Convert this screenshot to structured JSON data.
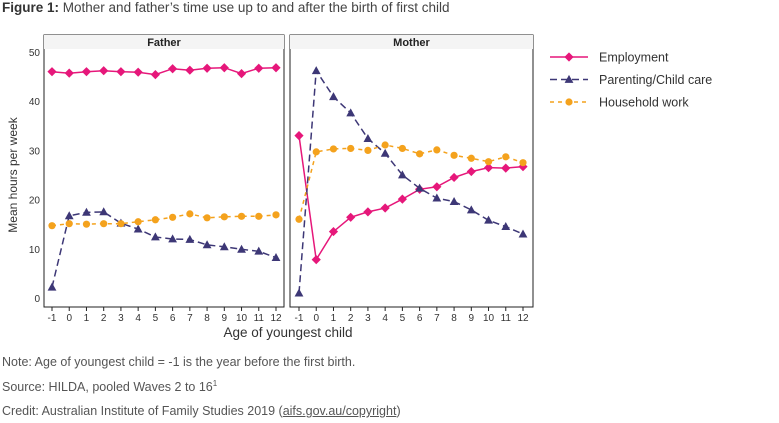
{
  "figure": {
    "label": "Figure 1:",
    "title": "Mother and father’s time use up to and after the birth of first child"
  },
  "notes": {
    "note": "Note: Age of youngest child = -1 is the year before the first birth.",
    "source_prefix": "Source: HILDA, pooled Waves 2 to 16",
    "source_sup": "1",
    "credit_prefix": "Credit: Australian Institute of Family Studies 2019 (",
    "credit_link": "aifs.gov.au/copyright",
    "credit_suffix": ")"
  },
  "chart_data": {
    "type": "line",
    "ylabel": "Mean hours per week",
    "xlabel": "Age of youngest child",
    "ylim": [
      0,
      50
    ],
    "yticks": [
      0,
      10,
      20,
      30,
      40,
      50
    ],
    "x": [
      -1,
      0,
      1,
      2,
      3,
      4,
      5,
      6,
      7,
      8,
      9,
      10,
      11,
      12
    ],
    "xtick_labels": [
      "-1",
      "0",
      "1",
      "2",
      "3",
      "4",
      "5",
      "6",
      "7",
      "8",
      "9",
      "10",
      "11",
      "12"
    ],
    "legend_position": "right",
    "panels": [
      {
        "title": "Father",
        "series": [
          {
            "name": "Employment",
            "color": "#e6177a",
            "marker": "diamond",
            "dash": "solid",
            "values": [
              46.0,
              45.7,
              46.0,
              46.2,
              46.0,
              45.9,
              45.4,
              46.6,
              46.3,
              46.7,
              46.8,
              45.6,
              46.7,
              46.8
            ]
          },
          {
            "name": "Parenting/Child care",
            "color": "#3d3776",
            "marker": "triangle",
            "dash": "long",
            "values": [
              2.2,
              16.7,
              17.4,
              17.5,
              15.2,
              14.0,
              12.4,
              12.0,
              11.9,
              10.8,
              10.4,
              9.9,
              9.5,
              8.2
            ]
          },
          {
            "name": "Household work",
            "color": "#f4a21d",
            "marker": "circle",
            "dash": "short",
            "values": [
              14.7,
              15.1,
              15.0,
              15.1,
              15.1,
              15.5,
              15.9,
              16.4,
              17.1,
              16.3,
              16.5,
              16.6,
              16.6,
              16.9
            ]
          }
        ]
      },
      {
        "title": "Mother",
        "series": [
          {
            "name": "Employment",
            "color": "#e6177a",
            "marker": "diamond",
            "dash": "solid",
            "values": [
              33.0,
              7.8,
              13.5,
              16.4,
              17.5,
              18.3,
              20.1,
              22.1,
              22.6,
              24.5,
              25.7,
              26.5,
              26.4,
              26.7
            ]
          },
          {
            "name": "Parenting/Child care",
            "color": "#3d3776",
            "marker": "triangle",
            "dash": "long",
            "values": [
              1.0,
              46.2,
              40.9,
              37.6,
              32.4,
              29.4,
              25.0,
              22.3,
              20.3,
              19.6,
              17.9,
              15.8,
              14.5,
              13.0
            ]
          },
          {
            "name": "Household work",
            "color": "#f4a21d",
            "marker": "circle",
            "dash": "short",
            "values": [
              16.0,
              29.7,
              30.3,
              30.4,
              30.0,
              31.1,
              30.4,
              29.3,
              30.1,
              29.0,
              28.4,
              27.7,
              28.7,
              27.5
            ]
          }
        ]
      }
    ],
    "legend": [
      {
        "name": "Employment",
        "color": "#e6177a",
        "marker": "diamond",
        "dash": "solid"
      },
      {
        "name": "Parenting/Child care",
        "color": "#3d3776",
        "marker": "triangle",
        "dash": "long"
      },
      {
        "name": "Household work",
        "color": "#f4a21d",
        "marker": "circle",
        "dash": "short"
      }
    ]
  }
}
